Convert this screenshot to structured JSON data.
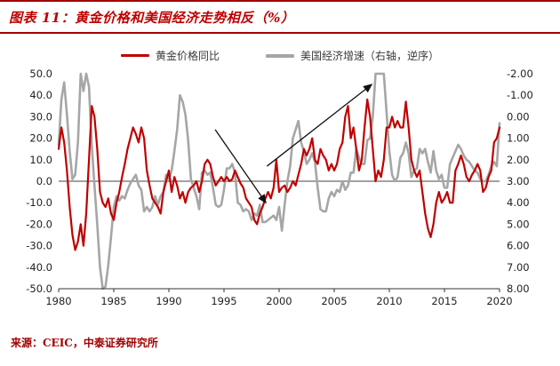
{
  "header": {
    "title": "图表 11：黄金价格和美国经济走势相反（%）"
  },
  "source": {
    "text": "来源：CEIC，中泰证券研究所"
  },
  "legend": [
    {
      "label": "黄金价格同比",
      "color": "#c00000"
    },
    {
      "label": "美国经济增速（右轴，逆序）",
      "color": "#a6a6a6"
    }
  ],
  "chart_data": {
    "type": "line",
    "title": "黄金价格和美国经济走势相反（%）",
    "legend_position": "top",
    "grid": false,
    "x_start": 1980,
    "x_step": 0.25,
    "x_ticks": [
      "1980",
      "1985",
      "1990",
      "1995",
      "2000",
      "2005",
      "2010",
      "2015",
      "2020"
    ],
    "left_axis": {
      "min": -50,
      "max": 50,
      "tick_step": 10,
      "tick_labels": [
        "50.0",
        "40.0",
        "30.0",
        "20.0",
        "10.0",
        "0.0",
        "-10.0",
        "-20.0",
        "-30.0",
        "-40.0",
        "-50.0"
      ]
    },
    "right_axis": {
      "min": -2,
      "max": 8,
      "tick_step": 1,
      "inverted": true,
      "tick_labels": [
        "-2.00",
        "-1.00",
        "0.00",
        "1.00",
        "2.00",
        "3.00",
        "4.00",
        "5.00",
        "6.00",
        "7.00",
        "8.00"
      ]
    },
    "series": [
      {
        "name": "黄金价格同比",
        "axis": "left",
        "color": "#c00000",
        "data_name": "gold-yoy-line",
        "values": [
          15,
          25,
          18,
          5,
          -12,
          -25,
          -32,
          -28,
          -20,
          -30,
          -15,
          10,
          35,
          30,
          15,
          -5,
          -10,
          -12,
          -8,
          -15,
          -18,
          -10,
          -5,
          2,
          8,
          15,
          20,
          25,
          22,
          18,
          25,
          20,
          5,
          -2,
          -8,
          -10,
          -12,
          -15,
          -5,
          0,
          5,
          -5,
          2,
          -2,
          -8,
          -5,
          -10,
          -5,
          -3,
          -2,
          0,
          -5,
          0,
          8,
          10,
          8,
          2,
          -2,
          0,
          2,
          0,
          2,
          0,
          1,
          5,
          2,
          -1,
          -3,
          -8,
          -10,
          -12,
          -18,
          -20,
          -15,
          -12,
          -8,
          -5,
          -8,
          -3,
          10,
          -5,
          -3,
          -2,
          -5,
          -3,
          0,
          -2,
          3,
          8,
          15,
          12,
          15,
          20,
          10,
          8,
          15,
          12,
          10,
          5,
          8,
          5,
          8,
          15,
          18,
          30,
          35,
          20,
          25,
          15,
          5,
          10,
          25,
          38,
          30,
          15,
          0,
          5,
          2,
          10,
          25,
          25,
          30,
          25,
          28,
          25,
          25,
          37,
          25,
          10,
          5,
          2,
          5,
          -5,
          -15,
          -22,
          -26,
          -20,
          -10,
          -5,
          -10,
          -8,
          -5,
          -10,
          -10,
          5,
          8,
          12,
          8,
          2,
          0,
          3,
          5,
          8,
          5,
          -5,
          -3,
          2,
          5,
          18,
          20,
          25
        ]
      },
      {
        "name": "美国经济增速（右轴，逆序）",
        "axis": "right",
        "color": "#a6a6a6",
        "data_name": "us-growth-line",
        "values": [
          1.3,
          -0.8,
          -1.6,
          -0.1,
          1.6,
          2.9,
          2.7,
          1.2,
          -2.5,
          -1.2,
          -2.6,
          -1.4,
          1.3,
          3.2,
          5.0,
          7.0,
          8.1,
          7.9,
          6.9,
          5.6,
          4.2,
          3.7,
          3.9,
          3.7,
          3.8,
          3.4,
          3.1,
          2.9,
          2.7,
          3.2,
          3.4,
          4.4,
          4.2,
          4.4,
          4.2,
          3.7,
          4.1,
          3.7,
          3.5,
          2.7,
          2.9,
          2.5,
          1.6,
          0.6,
          -1.0,
          -0.7,
          -0.1,
          1.1,
          2.9,
          3.3,
          3.7,
          4.3,
          2.6,
          2.5,
          2.7,
          2.6,
          3.3,
          4.1,
          4.2,
          4.1,
          3.4,
          2.4,
          2.4,
          2.2,
          2.6,
          4.0,
          4.1,
          4.4,
          4.3,
          4.4,
          4.8,
          4.5,
          4.6,
          4.1,
          4.9,
          4.9,
          4.8,
          4.7,
          4.6,
          4.8,
          4.2,
          5.3,
          4.1,
          3.0,
          2.3,
          1.0,
          0.6,
          0.2,
          1.2,
          1.6,
          2.2,
          2.0,
          1.7,
          2.1,
          3.3,
          4.3,
          4.4,
          4.4,
          3.8,
          3.5,
          3.7,
          3.4,
          3.5,
          3.0,
          3.4,
          3.2,
          2.6,
          2.6,
          1.5,
          1.9,
          2.2,
          2.2,
          1.1,
          1.0,
          0.0,
          -2.8,
          -3.3,
          -3.9,
          -3.2,
          -0.2,
          1.6,
          2.7,
          3.0,
          2.8,
          1.9,
          1.7,
          1.2,
          1.7,
          2.8,
          2.5,
          2.4,
          1.5,
          1.7,
          1.5,
          2.1,
          2.6,
          1.6,
          2.5,
          2.9,
          2.7,
          3.3,
          3.3,
          2.2,
          1.9,
          1.6,
          1.3,
          1.5,
          1.8,
          2.0,
          2.1,
          2.3,
          2.5,
          2.6,
          2.9,
          3.0,
          3.0,
          2.7,
          2.3,
          2.1,
          2.3,
          0.3
        ]
      }
    ],
    "annotations": [
      {
        "type": "arrow",
        "axis": "left",
        "from": {
          "x": 1994.2,
          "y": 24
        },
        "to": {
          "x": 1998.8,
          "y": -10
        }
      },
      {
        "type": "arrow",
        "axis": "left",
        "from": {
          "x": 1998.9,
          "y": 7
        },
        "to": {
          "x": 2008.4,
          "y": 45
        }
      }
    ]
  }
}
